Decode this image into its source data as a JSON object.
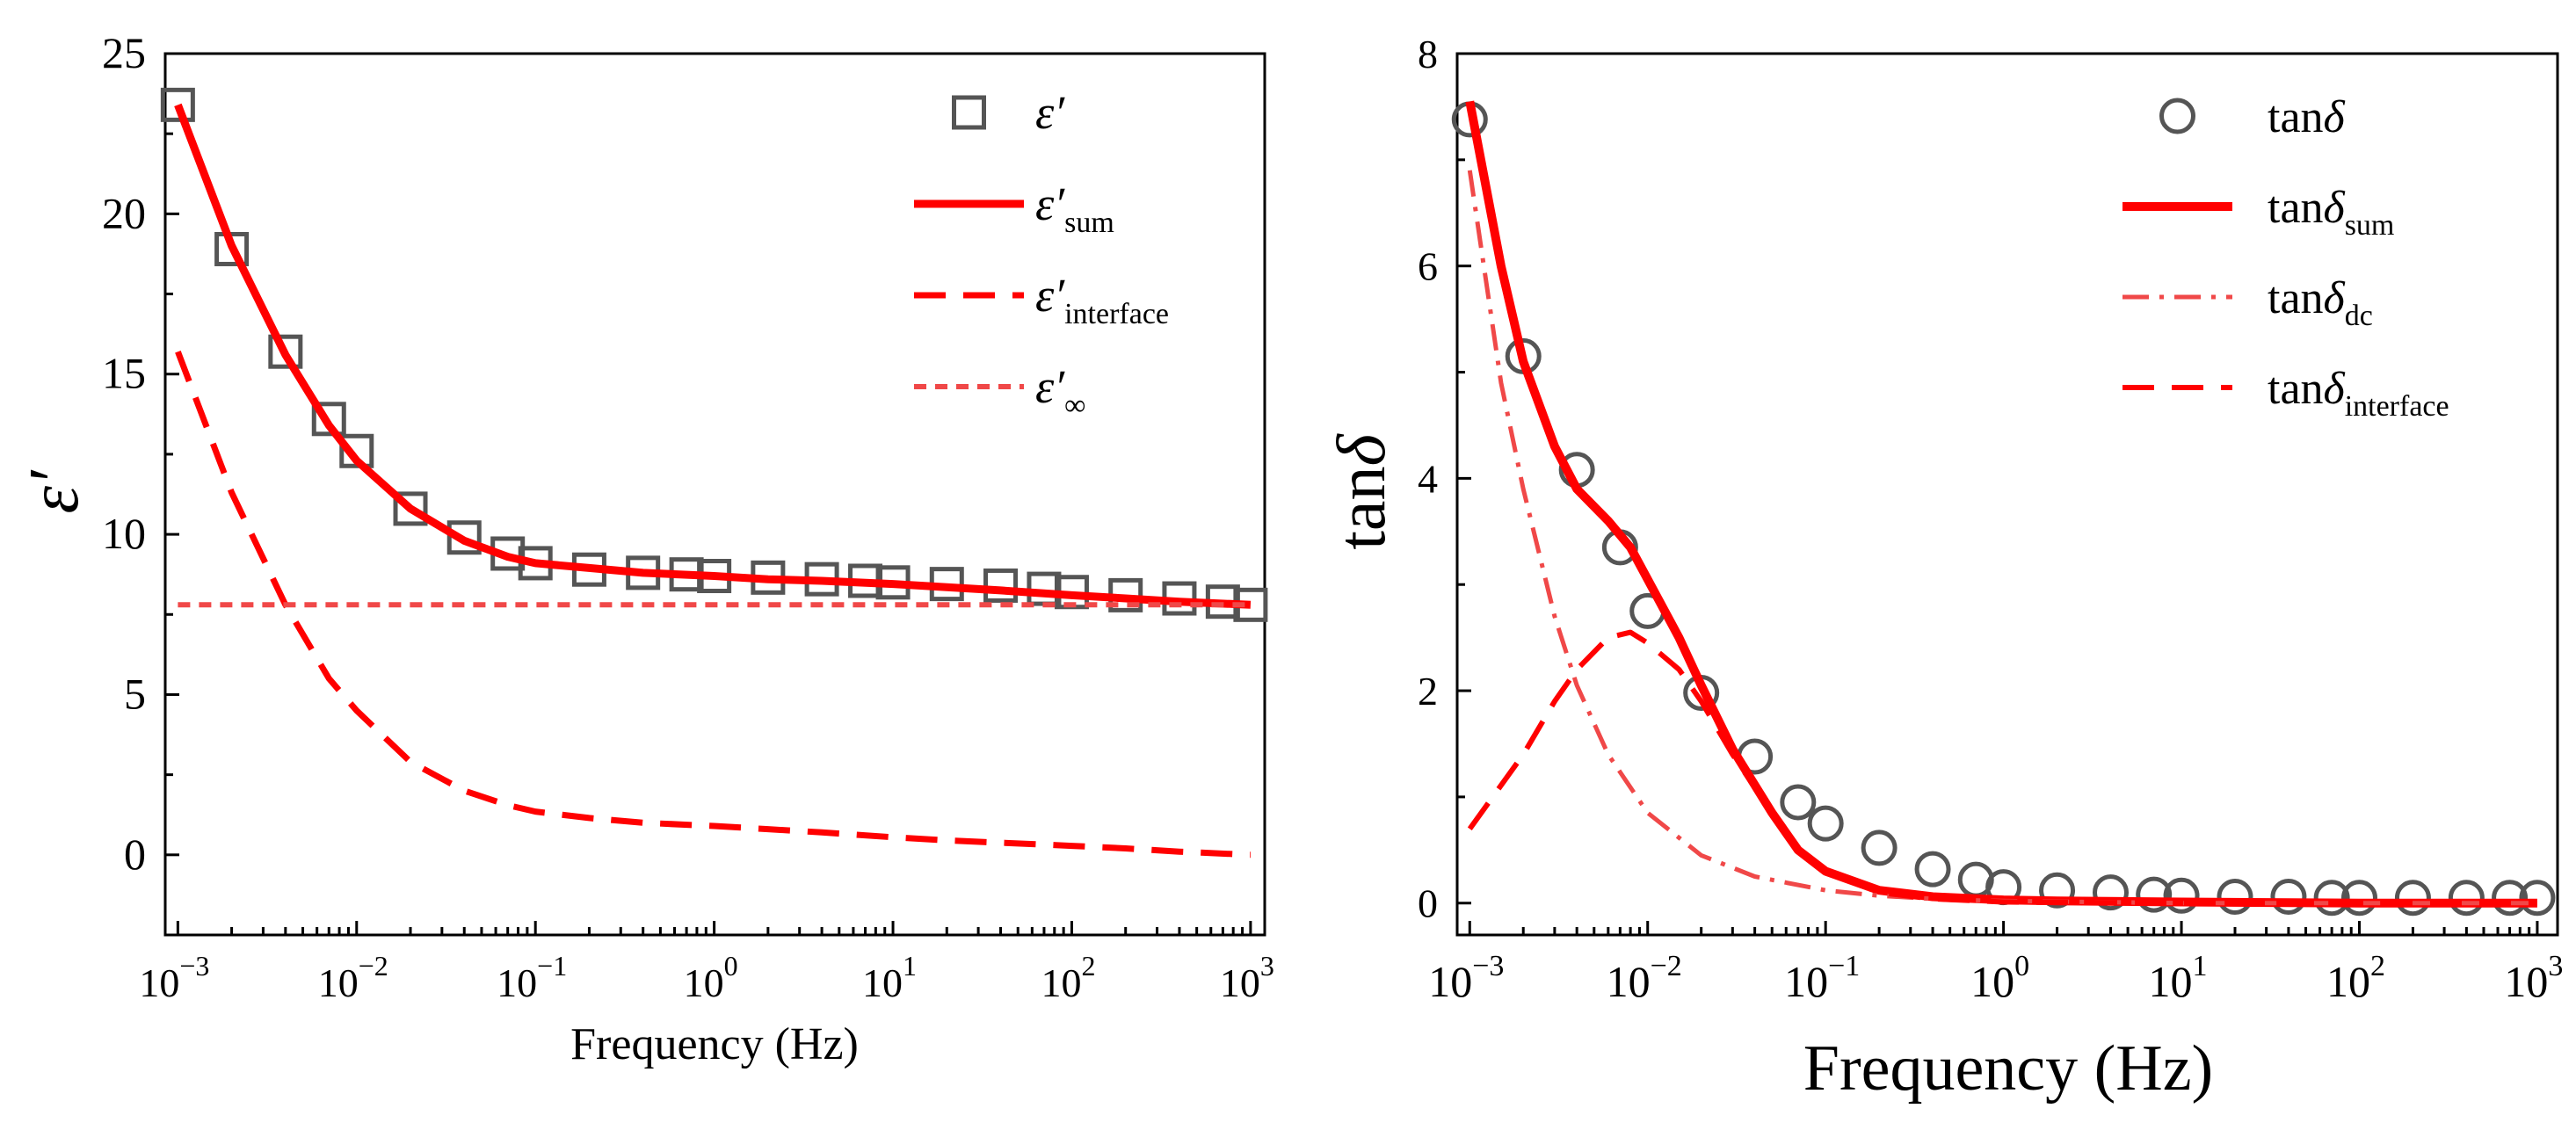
{
  "chart_data": [
    {
      "type": "line",
      "xlabel": "Frequency (Hz)",
      "ylabel": "ε′",
      "x_scale": "log",
      "xlim": [
        0.00085,
        1200
      ],
      "ylim": [
        -2.5,
        25
      ],
      "x_ticks": [
        {
          "value": 0.001,
          "base": "10",
          "exp": "−3"
        },
        {
          "value": 0.01,
          "base": "10",
          "exp": "−2"
        },
        {
          "value": 0.1,
          "base": "10",
          "exp": "−1"
        },
        {
          "value": 1,
          "base": "10",
          "exp": "0"
        },
        {
          "value": 10,
          "base": "10",
          "exp": "1"
        },
        {
          "value": 100,
          "base": "10",
          "exp": "2"
        },
        {
          "value": 1000,
          "base": "10",
          "exp": "3"
        }
      ],
      "y_ticks": [
        {
          "value": 0,
          "label": "0"
        },
        {
          "value": 5,
          "label": "5"
        },
        {
          "value": 10,
          "label": "10"
        },
        {
          "value": 15,
          "label": "15"
        },
        {
          "value": 20,
          "label": "20"
        },
        {
          "value": 25,
          "label": "25"
        }
      ],
      "legend_position": "top-right",
      "series": [
        {
          "name": "ε′",
          "subscript": "",
          "style": "square-markers",
          "color": "#555555",
          "x": [
            0.001,
            0.002,
            0.004,
            0.007,
            0.01,
            0.02,
            0.04,
            0.07,
            0.1,
            0.2,
            0.4,
            0.7,
            1,
            2,
            4,
            7,
            10,
            20,
            40,
            70,
            100,
            200,
            400,
            700,
            1000
          ],
          "y": [
            23.4,
            18.9,
            15.7,
            13.6,
            12.6,
            10.8,
            9.9,
            9.4,
            9.1,
            8.9,
            8.8,
            8.75,
            8.7,
            8.65,
            8.6,
            8.55,
            8.5,
            8.45,
            8.4,
            8.3,
            8.2,
            8.1,
            8.0,
            7.9,
            7.8
          ]
        },
        {
          "name": "ε′",
          "subscript": "sum",
          "style": "solid",
          "color": "#ff0000",
          "x": [
            0.001,
            0.002,
            0.004,
            0.007,
            0.01,
            0.02,
            0.04,
            0.07,
            0.1,
            0.2,
            0.4,
            1,
            2,
            4,
            10,
            20,
            40,
            100,
            200,
            400,
            1000
          ],
          "y": [
            23.4,
            19.0,
            15.6,
            13.4,
            12.3,
            10.8,
            9.8,
            9.3,
            9.1,
            8.95,
            8.8,
            8.7,
            8.6,
            8.55,
            8.45,
            8.35,
            8.25,
            8.1,
            8.0,
            7.9,
            7.8
          ]
        },
        {
          "name": "ε′",
          "subscript": "interface",
          "style": "dashed",
          "color": "#ff0000",
          "x": [
            0.001,
            0.002,
            0.004,
            0.007,
            0.01,
            0.02,
            0.04,
            0.07,
            0.1,
            0.2,
            0.4,
            1,
            2,
            4,
            10,
            20,
            40,
            100,
            200,
            400,
            1000
          ],
          "y": [
            15.7,
            11.3,
            7.8,
            5.5,
            4.5,
            2.9,
            2.0,
            1.55,
            1.35,
            1.15,
            1.0,
            0.9,
            0.8,
            0.7,
            0.55,
            0.45,
            0.38,
            0.28,
            0.2,
            0.1,
            0.0
          ]
        },
        {
          "name": "ε′",
          "subscript": "∞",
          "style": "short-dashed",
          "color": "#f04848",
          "x": [
            0.001,
            1000
          ],
          "y": [
            7.8,
            7.8
          ]
        }
      ]
    },
    {
      "type": "line",
      "xlabel": "Frequency (Hz)",
      "ylabel": "tanδ",
      "x_scale": "log",
      "xlim": [
        0.00085,
        1300
      ],
      "ylim": [
        -0.3,
        8
      ],
      "x_ticks": [
        {
          "value": 0.001,
          "base": "10",
          "exp": "−3"
        },
        {
          "value": 0.01,
          "base": "10",
          "exp": "−2"
        },
        {
          "value": 0.1,
          "base": "10",
          "exp": "−1"
        },
        {
          "value": 1,
          "base": "10",
          "exp": "0"
        },
        {
          "value": 10,
          "base": "10",
          "exp": "1"
        },
        {
          "value": 100,
          "base": "10",
          "exp": "2"
        },
        {
          "value": 1000,
          "base": "10",
          "exp": "3"
        }
      ],
      "y_ticks": [
        {
          "value": 0,
          "label": "0"
        },
        {
          "value": 2,
          "label": "2"
        },
        {
          "value": 4,
          "label": "4"
        },
        {
          "value": 6,
          "label": "6"
        },
        {
          "value": 8,
          "label": "8"
        }
      ],
      "legend_position": "top-right",
      "series": [
        {
          "name": "tanδ",
          "subscript": "",
          "style": "circle-markers",
          "color": "#555555",
          "x": [
            0.001,
            0.002,
            0.004,
            0.007,
            0.01,
            0.02,
            0.04,
            0.07,
            0.1,
            0.2,
            0.4,
            0.7,
            1,
            2,
            4,
            7,
            10,
            20,
            40,
            70,
            100,
            200,
            400,
            700,
            1000
          ],
          "y": [
            7.38,
            5.15,
            4.08,
            3.35,
            2.75,
            1.98,
            1.38,
            0.95,
            0.75,
            0.52,
            0.32,
            0.22,
            0.15,
            0.12,
            0.1,
            0.08,
            0.07,
            0.06,
            0.06,
            0.05,
            0.05,
            0.05,
            0.05,
            0.05,
            0.05
          ]
        },
        {
          "name": "tanδ",
          "subscript": "sum",
          "style": "solid",
          "color": "#ff0000",
          "x": [
            0.001,
            0.0015,
            0.002,
            0.003,
            0.004,
            0.006,
            0.008,
            0.01,
            0.015,
            0.02,
            0.03,
            0.05,
            0.07,
            0.1,
            0.2,
            0.4,
            1,
            2,
            10,
            100,
            1000
          ],
          "y": [
            7.55,
            6.0,
            5.1,
            4.3,
            3.9,
            3.6,
            3.35,
            3.05,
            2.5,
            2.05,
            1.45,
            0.85,
            0.5,
            0.3,
            0.12,
            0.06,
            0.03,
            0.02,
            0.01,
            0.0,
            0.0
          ]
        },
        {
          "name": "tanδ",
          "subscript": "dc",
          "style": "dash-dot",
          "color": "#f04848",
          "x": [
            0.001,
            0.0015,
            0.002,
            0.003,
            0.004,
            0.006,
            0.01,
            0.02,
            0.04,
            0.1,
            0.2,
            0.5,
            1,
            10,
            1000
          ],
          "y": [
            6.9,
            4.9,
            3.9,
            2.7,
            2.05,
            1.4,
            0.85,
            0.45,
            0.25,
            0.12,
            0.07,
            0.03,
            0.02,
            0.0,
            0.0
          ]
        },
        {
          "name": "tanδ",
          "subscript": "interface",
          "style": "dashed",
          "color": "#ff0000",
          "x": [
            0.001,
            0.002,
            0.003,
            0.004,
            0.006,
            0.008,
            0.01,
            0.015,
            0.02,
            0.03,
            0.05,
            0.07,
            0.1,
            0.2,
            0.4,
            1,
            10,
            1000
          ],
          "y": [
            0.7,
            1.4,
            1.9,
            2.2,
            2.5,
            2.55,
            2.45,
            2.2,
            1.9,
            1.4,
            0.85,
            0.5,
            0.3,
            0.1,
            0.04,
            0.01,
            0.0,
            0.0
          ]
        }
      ]
    }
  ]
}
